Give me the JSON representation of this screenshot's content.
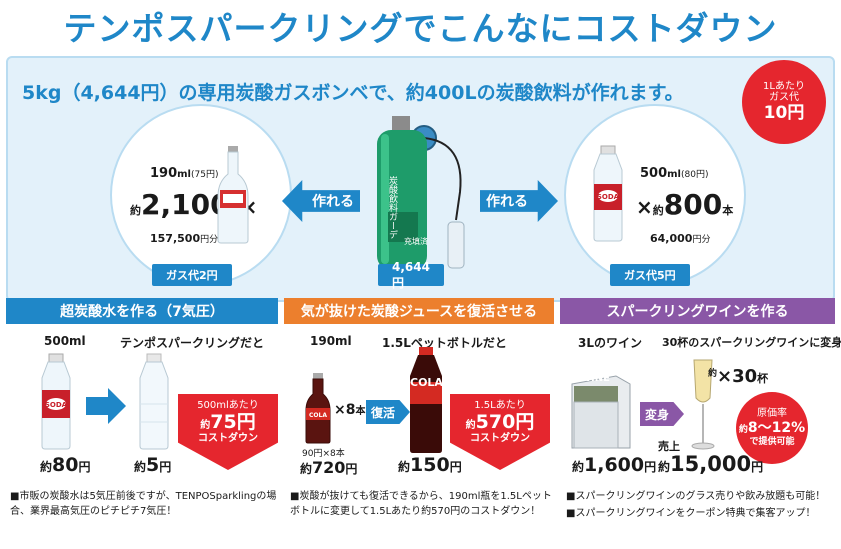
{
  "title": "テンポスパークリングでこんなにコストダウン",
  "intro": "5kg（4,644円）の専用炭酸ガスボンベで、約400Lの炭酸飲料が作れます。",
  "unit_badge": {
    "line1": "1Lあたり",
    "line2": "ガス代",
    "price": "10円"
  },
  "cylinder": {
    "label": "4,644円",
    "tank_text": "炭酸飲料ガーデ",
    "tank_sub": "充填済"
  },
  "arrow_left": "作れる",
  "arrow_right": "作れる",
  "left_circle": {
    "size": "190",
    "size_unit": "ml",
    "size_price": "(75円)",
    "about": "約",
    "count": "2,100",
    "count_unit": "本",
    "times": "×",
    "total": "157,500",
    "total_unit": "円分",
    "gas_badge": "ガス代2円"
  },
  "right_circle": {
    "size": "500",
    "size_unit": "ml",
    "size_price": "(80円)",
    "times": "×",
    "about": "約",
    "count": "800",
    "count_unit": "本",
    "total": "64,000",
    "total_unit": "円分",
    "gas_badge": "ガス代5円"
  },
  "section1": {
    "header": "超炭酸水を作る（7気圧）",
    "left_label": "500ml",
    "right_label": "テンポスパークリングだと",
    "left_price_about": "約",
    "left_price": "80",
    "left_price_unit": "円",
    "right_price_about": "約",
    "right_price": "5",
    "right_price_unit": "円",
    "saving_line1": "500mlあたり",
    "saving_about": "約",
    "saving_value": "75円",
    "saving_line3": "コストダウン",
    "note": "■市販の炭酸水は5気圧前後ですが、TENPOSparklingの場合、業界最高気圧のピチピチ7気圧！"
  },
  "section2": {
    "header": "気が抜けた炭酸ジュースを復活させる",
    "left_label": "190ml",
    "right_label": "1.5Lペットボトルだと",
    "times": "×8",
    "times_unit": "本",
    "revive": "復活",
    "left_calc": "90円×8本",
    "left_price_about": "約",
    "left_price": "720",
    "left_price_unit": "円",
    "right_price_about": "約",
    "right_price": "150",
    "right_price_unit": "円",
    "saving_line1": "1.5Lあたり",
    "saving_about": "約",
    "saving_value": "570円",
    "saving_line3": "コストダウン",
    "cola_text": "COLA",
    "note": "■炭酸が抜けても復活できるから、190ml瓶を1.5Lペットボトルに変更して1.5Lあたり約570円のコストダウン！"
  },
  "section3": {
    "header": "スパークリングワインを作る",
    "left_label": "3Lのワイン",
    "right_label": "30杯のスパークリングワインに変身",
    "wine_box_text": "WINE",
    "times_about": "約",
    "times": "×30",
    "times_unit": "杯",
    "transform": "変身",
    "left_price_about": "約",
    "left_price": "1,600",
    "left_price_unit": "円",
    "sales_label": "売上",
    "sales_about": "約",
    "sales_price": "15,000",
    "sales_unit": "円",
    "cost_line1": "原価率",
    "cost_about": "約",
    "cost_value": "8〜12%",
    "cost_line3": "で提供可能",
    "note_1": "■スパークリングワインのグラス売りや飲み放題も可能！",
    "note_2": "■スパークリングワインをクーポン特典で集客アップ！"
  },
  "colors": {
    "blue": "#1f87c8",
    "orange": "#ec7f2d",
    "purple": "#8a57a6",
    "red": "#e5262e"
  }
}
